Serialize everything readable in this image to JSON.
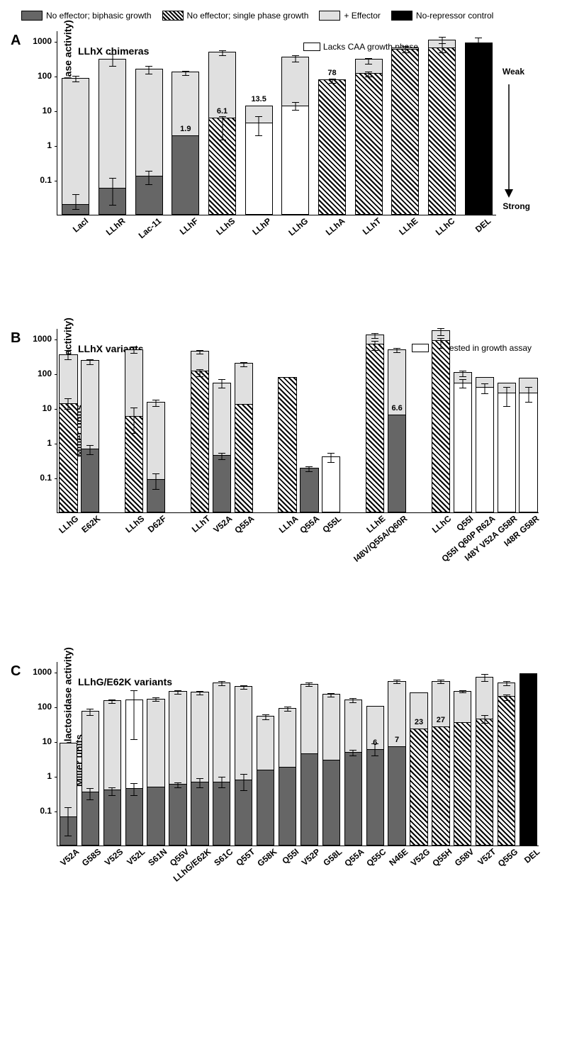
{
  "colors": {
    "dark_gray": "#666666",
    "light_gray": "#e0e0e0",
    "black": "#000000",
    "white": "#ffffff",
    "hatch": "hatch"
  },
  "legend": [
    {
      "label": "No effector; biphasic growth",
      "fill": "dark_gray"
    },
    {
      "label": "No effector; single phase growth",
      "fill": "hatch"
    },
    {
      "label": "+ Effector",
      "fill": "light_gray"
    },
    {
      "label": "No-repressor control",
      "fill": "black"
    }
  ],
  "y_axis": {
    "label_line1": "Log (β-galactosidase activity)",
    "label_line2": "Miller units",
    "ticks": [
      0.1,
      1,
      10,
      100,
      1000
    ],
    "min": 0.01,
    "max": 2000
  },
  "chartA": {
    "letter": "A",
    "title": "LLhX chimeras",
    "side_note": "Lacks CAA growth phase",
    "right_labels": {
      "top": "Weak",
      "bottom": "Strong"
    },
    "categories": [
      "LacI",
      "LLhR",
      "Lac-11",
      "LLhF",
      "LLhS",
      "LLhP",
      "LLhG",
      "LLhA",
      "LLhT",
      "LLhE",
      "LLhC",
      "DEL"
    ],
    "bars_lower": [
      {
        "v": 0.02,
        "fill": "dark_gray",
        "err": [
          0.015,
          0.04
        ]
      },
      {
        "v": 0.06,
        "fill": "dark_gray",
        "err": [
          0.02,
          0.12
        ]
      },
      {
        "v": 0.13,
        "fill": "dark_gray",
        "err": [
          0.08,
          0.19
        ]
      },
      {
        "v": 1.9,
        "fill": "dark_gray",
        "label": "1.9"
      },
      {
        "v": 6.1,
        "fill": "hatch",
        "err": [
          1.5,
          7
        ],
        "label": "6.1"
      },
      {
        "v": 4.5,
        "fill": "white",
        "err": [
          2,
          7
        ]
      },
      {
        "v": 14,
        "fill": "white",
        "err": [
          11,
          18
        ]
      },
      {
        "v": 78,
        "fill": "hatch",
        "err": [
          65,
          85
        ],
        "label": "78"
      },
      {
        "v": 120,
        "fill": "hatch",
        "err": [
          100,
          140
        ]
      },
      {
        "v": 600,
        "fill": "hatch",
        "err": [
          500,
          750
        ]
      },
      {
        "v": 650,
        "fill": "hatch",
        "err": [
          500,
          900
        ]
      },
      {
        "v": 900,
        "fill": "black",
        "err": [
          700,
          1300
        ]
      }
    ],
    "bars_upper": [
      {
        "v": 85,
        "fill": "light_gray",
        "err": [
          70,
          105
        ]
      },
      {
        "v": 300,
        "fill": "light_gray",
        "err": [
          200,
          450
        ]
      },
      {
        "v": 160,
        "fill": "light_gray",
        "err": [
          120,
          200
        ]
      },
      {
        "v": 130,
        "fill": "light_gray",
        "err": [
          110,
          145
        ]
      },
      {
        "v": 500,
        "fill": "light_gray",
        "err": [
          400,
          550
        ]
      },
      {
        "v": 13.5,
        "fill": "light_gray",
        "label": "13.5"
      },
      {
        "v": 350,
        "fill": "light_gray",
        "err": [
          260,
          400
        ]
      },
      {
        "v": 78,
        "fill": "none"
      },
      {
        "v": 300,
        "fill": "light_gray",
        "err": [
          230,
          330
        ]
      },
      {
        "v": 650,
        "fill": "light_gray"
      },
      {
        "v": 1100,
        "fill": "light_gray",
        "err": [
          900,
          1400
        ]
      },
      {
        "v": 900,
        "fill": "none"
      }
    ]
  },
  "chartB": {
    "letter": "B",
    "title": "LLhX variants",
    "side_note": "Not tested in growth assay",
    "groups": [
      {
        "parent": "LLhG",
        "items": [
          "",
          "E62K"
        ]
      },
      {
        "parent": "LLhS",
        "items": [
          "",
          "D62F"
        ]
      },
      {
        "parent": "LLhT",
        "items": [
          "",
          "V52A",
          "Q55A"
        ]
      },
      {
        "parent": "LLhA",
        "items": [
          "",
          "Q55A",
          "Q55L"
        ]
      },
      {
        "parent": "LLhE",
        "items": [
          "",
          "I48V/Q55A/Q60R"
        ]
      },
      {
        "parent": "LLhC",
        "items": [
          "",
          "Q55I",
          "Q55I Q60P R62A",
          "I48Y V52A G58R",
          "I48R G58R"
        ]
      }
    ],
    "bars": [
      {
        "lower": {
          "v": 14,
          "fill": "hatch",
          "err": [
            10,
            20
          ]
        },
        "upper": {
          "v": 350,
          "fill": "light_gray",
          "err": [
            260,
            500
          ]
        }
      },
      {
        "lower": {
          "v": 0.7,
          "fill": "dark_gray",
          "err": [
            0.5,
            0.9
          ]
        },
        "upper": {
          "v": 240,
          "fill": "light_gray",
          "err": [
            190,
            270
          ]
        }
      },
      null,
      {
        "lower": {
          "v": 6,
          "fill": "hatch",
          "err": [
            2,
            11
          ]
        },
        "upper": {
          "v": 500,
          "fill": "light_gray",
          "err": [
            400,
            620
          ]
        }
      },
      {
        "lower": {
          "v": 0.09,
          "fill": "dark_gray",
          "err": [
            0.05,
            0.14
          ]
        },
        "upper": {
          "v": 15,
          "fill": "light_gray",
          "err": [
            12,
            18
          ]
        }
      },
      null,
      {
        "lower": {
          "v": 120,
          "fill": "hatch",
          "err": [
            85,
            140
          ]
        },
        "upper": {
          "v": 450,
          "fill": "light_gray",
          "err": [
            380,
            500
          ]
        }
      },
      {
        "lower": {
          "v": 0.45,
          "fill": "dark_gray",
          "err": [
            0.35,
            0.55
          ]
        },
        "upper": {
          "v": 55,
          "fill": "light_gray",
          "err": [
            40,
            70
          ]
        }
      },
      {
        "lower": {
          "v": 13,
          "fill": "hatch"
        },
        "upper": {
          "v": 200,
          "fill": "light_gray",
          "err": [
            170,
            220
          ]
        }
      },
      null,
      {
        "lower": {
          "v": 80,
          "fill": "hatch"
        },
        "upper": {
          "v": 80,
          "fill": "none"
        }
      },
      {
        "lower": {
          "v": 0.19,
          "fill": "dark_gray",
          "err": [
            0.16,
            0.22
          ]
        },
        "upper": {
          "v": 0.19,
          "fill": "none"
        }
      },
      {
        "lower": {
          "v": 0.4,
          "fill": "white",
          "err": [
            0.3,
            0.55
          ]
        },
        "upper": {
          "v": 0.4,
          "fill": "none"
        }
      },
      null,
      {
        "lower": {
          "v": 700,
          "fill": "hatch",
          "err": [
            500,
            900
          ]
        },
        "upper": {
          "v": 1300,
          "fill": "light_gray",
          "err": [
            1100,
            1500
          ]
        }
      },
      {
        "lower": {
          "v": 6.6,
          "fill": "dark_gray",
          "label": "6.6"
        },
        "upper": {
          "v": 500,
          "fill": "light_gray",
          "err": [
            420,
            560
          ]
        }
      },
      null,
      {
        "lower": {
          "v": 900,
          "fill": "hatch",
          "err": [
            550,
            1100
          ]
        },
        "upper": {
          "v": 1700,
          "fill": "light_gray",
          "err": [
            1300,
            2100
          ]
        }
      },
      {
        "lower": {
          "v": 55,
          "fill": "white",
          "err": [
            40,
            70
          ]
        },
        "upper": {
          "v": 110,
          "fill": "light_gray",
          "err": [
            85,
            125
          ]
        }
      },
      {
        "lower": {
          "v": 40,
          "fill": "white",
          "err": [
            28,
            55
          ]
        },
        "upper": {
          "v": 80,
          "fill": "light_gray"
        }
      },
      {
        "lower": {
          "v": 28,
          "fill": "white",
          "err": [
            12,
            42
          ]
        },
        "upper": {
          "v": 55,
          "fill": "light_gray"
        }
      },
      {
        "lower": {
          "v": 28,
          "fill": "white",
          "err": [
            16,
            42
          ]
        },
        "upper": {
          "v": 75,
          "fill": "light_gray"
        }
      }
    ]
  },
  "chartC": {
    "letter": "C",
    "title": "LLhG/E62K variants",
    "categories": [
      "V52A",
      "G58S",
      "V52S",
      "V52L",
      "S61N",
      "Q55V",
      "LLhG/E62K",
      "S61C",
      "Q55T",
      "G58K",
      "Q55I",
      "V52P",
      "G58L",
      "Q55A",
      "Q55C",
      "N46E",
      "V52G",
      "Q55H",
      "G58V",
      "V52T",
      "Q55G",
      "DEL"
    ],
    "bars_lower": [
      {
        "v": 0.07,
        "fill": "dark_gray",
        "err": [
          0.02,
          0.13
        ]
      },
      {
        "v": 0.35,
        "fill": "dark_gray",
        "err": [
          0.22,
          0.48
        ]
      },
      {
        "v": 0.4,
        "fill": "dark_gray",
        "err": [
          0.3,
          0.5
        ]
      },
      {
        "v": 0.45,
        "fill": "dark_gray",
        "err": [
          0.3,
          0.65
        ]
      },
      {
        "v": 0.5,
        "fill": "dark_gray"
      },
      {
        "v": 0.6,
        "fill": "dark_gray",
        "err": [
          0.5,
          0.7
        ]
      },
      {
        "v": 0.7,
        "fill": "dark_gray",
        "err": [
          0.5,
          0.9
        ]
      },
      {
        "v": 0.7,
        "fill": "dark_gray",
        "err": [
          0.5,
          1.0
        ]
      },
      {
        "v": 0.8,
        "fill": "dark_gray",
        "err": [
          0.4,
          1.2
        ]
      },
      {
        "v": 1.5,
        "fill": "dark_gray"
      },
      {
        "v": 1.8,
        "fill": "dark_gray"
      },
      {
        "v": 4.5,
        "fill": "dark_gray"
      },
      {
        "v": 3,
        "fill": "dark_gray"
      },
      {
        "v": 5,
        "fill": "dark_gray",
        "err": [
          4,
          6
        ]
      },
      {
        "v": 6,
        "fill": "dark_gray",
        "err": [
          4,
          9
        ],
        "label": "6"
      },
      {
        "v": 7,
        "fill": "dark_gray",
        "label": "7"
      },
      {
        "v": 23,
        "fill": "hatch",
        "label": "23"
      },
      {
        "v": 27,
        "fill": "hatch",
        "label": "27"
      },
      {
        "v": 35,
        "fill": "hatch"
      },
      {
        "v": 45,
        "fill": "hatch",
        "err": [
          35,
          58
        ]
      },
      {
        "v": 200,
        "fill": "hatch",
        "err": [
          160,
          230
        ]
      },
      {
        "v": 900,
        "fill": "black"
      }
    ],
    "bars_upper": [
      {
        "v": 9,
        "fill": "light_gray"
      },
      {
        "v": 75,
        "fill": "light_gray",
        "err": [
          60,
          90
        ]
      },
      {
        "v": 150,
        "fill": "light_gray",
        "err": [
          130,
          170
        ]
      },
      {
        "v": 160,
        "fill": "white",
        "err": [
          12,
          300
        ]
      },
      {
        "v": 170,
        "fill": "light_gray",
        "err": [
          150,
          195
        ]
      },
      {
        "v": 280,
        "fill": "light_gray",
        "err": [
          240,
          310
        ]
      },
      {
        "v": 260,
        "fill": "light_gray",
        "err": [
          230,
          290
        ]
      },
      {
        "v": 500,
        "fill": "light_gray",
        "err": [
          420,
          560
        ]
      },
      {
        "v": 380,
        "fill": "light_gray",
        "err": [
          340,
          420
        ]
      },
      {
        "v": 55,
        "fill": "light_gray",
        "err": [
          45,
          62
        ]
      },
      {
        "v": 90,
        "fill": "light_gray",
        "err": [
          78,
          105
        ]
      },
      {
        "v": 450,
        "fill": "light_gray",
        "err": [
          400,
          520
        ]
      },
      {
        "v": 230,
        "fill": "light_gray",
        "err": [
          200,
          250
        ]
      },
      {
        "v": 160,
        "fill": "light_gray",
        "err": [
          140,
          180
        ]
      },
      {
        "v": 105,
        "fill": "light_gray"
      },
      {
        "v": 550,
        "fill": "light_gray",
        "err": [
          490,
          610
        ]
      },
      {
        "v": 250,
        "fill": "light_gray"
      },
      {
        "v": 550,
        "fill": "light_gray",
        "err": [
          500,
          620
        ]
      },
      {
        "v": 280,
        "fill": "light_gray",
        "err": [
          260,
          310
        ]
      },
      {
        "v": 700,
        "fill": "light_gray",
        "err": [
          550,
          900
        ]
      },
      {
        "v": 480,
        "fill": "light_gray",
        "err": [
          420,
          560
        ]
      },
      {
        "v": 900,
        "fill": "none"
      }
    ]
  }
}
